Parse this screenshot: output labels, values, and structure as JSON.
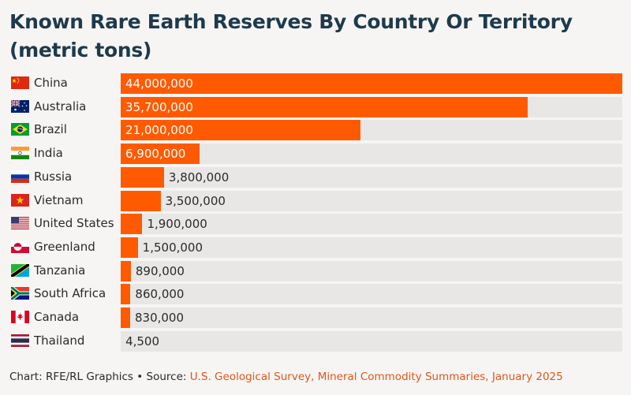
{
  "chart_data": {
    "type": "bar",
    "orientation": "horizontal",
    "title": "Known Rare Earth Reserves By Country Or Territory (metric tons)",
    "categories": [
      "China",
      "Australia",
      "Brazil",
      "India",
      "Russia",
      "Vietnam",
      "United States",
      "Greenland",
      "Tanzania",
      "South Africa",
      "Canada",
      "Thailand"
    ],
    "values": [
      44000000,
      35700000,
      21000000,
      6900000,
      3800000,
      3500000,
      1900000,
      1500000,
      890000,
      860000,
      830000,
      4500
    ],
    "value_labels": [
      "44,000,000",
      "35,700,000",
      "21,000,000",
      "6,900,000",
      "3,800,000",
      "3,500,000",
      "1,900,000",
      "1,500,000",
      "890,000",
      "860,000",
      "830,000",
      "4,500"
    ],
    "flag_icons": [
      "china-flag-icon",
      "australia-flag-icon",
      "brazil-flag-icon",
      "india-flag-icon",
      "russia-flag-icon",
      "vietnam-flag-icon",
      "united-states-flag-icon",
      "greenland-flag-icon",
      "tanzania-flag-icon",
      "south-africa-flag-icon",
      "canada-flag-icon",
      "thailand-flag-icon"
    ],
    "xlim": [
      0,
      44000000
    ],
    "grid": false,
    "legend": "none",
    "colors": {
      "bar": "#ff5a00",
      "track": "#e8e7e5",
      "title": "#1e3a4c",
      "source_link": "#e0561a"
    }
  },
  "footer": {
    "credit": "Chart: RFE/RL Graphics • Source: ",
    "source": "U.S. Geological Survey, Mineral Commodity Summaries, January 2025"
  }
}
